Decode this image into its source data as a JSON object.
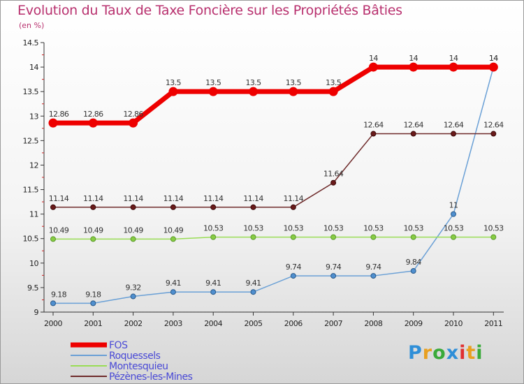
{
  "title": "Evolution du Taux de Taxe Foncière sur les Propriétés Bâties",
  "subtitle": "(en %)",
  "colors": {
    "title": "#b8306e",
    "FOS": "#ee0000",
    "Roquessels": "#6aa0d6",
    "Montesquieu": "#99dd55",
    "Pezenes": "#6e2a2a",
    "legend_text": "#4a4ad6"
  },
  "logo": {
    "text": "Proxiti",
    "letters": [
      "P",
      "r",
      "o",
      "x",
      "i",
      "t",
      "i"
    ],
    "letter_colors": [
      "#2f8fd8",
      "#e8a020",
      "#3aaa3a",
      "#2f8fd8",
      "#e03030",
      "#e8a020",
      "#3aaa3a"
    ]
  },
  "chart_data": {
    "type": "line",
    "title": "Evolution du Taux de Taxe Foncière sur les Propriétés Bâties",
    "ylabel": "(en %)",
    "xlabel": "",
    "categories": [
      "2000",
      "2001",
      "2002",
      "2003",
      "2004",
      "2005",
      "2006",
      "2007",
      "2008",
      "2009",
      "2010",
      "2011"
    ],
    "ylim": [
      9,
      14.5
    ],
    "yticks": [
      "9",
      "9.5",
      "10",
      "10.5",
      "11",
      "11.5",
      "12",
      "12.5",
      "13",
      "13.5",
      "14",
      "14.5"
    ],
    "grid": false,
    "legend_position": "bottom-left",
    "series": [
      {
        "name": "FOS",
        "key": "FOS",
        "values": [
          12.86,
          12.86,
          12.86,
          13.5,
          13.5,
          13.5,
          13.5,
          13.5,
          14,
          14,
          14,
          14
        ],
        "labels": [
          "12.86",
          "12.86",
          "12.86",
          "13.5",
          "13.5",
          "13.5",
          "13.5",
          "13.5",
          "14",
          "14",
          "14",
          "14"
        ]
      },
      {
        "name": "Roquessels",
        "key": "Roquessels",
        "values": [
          9.18,
          9.18,
          9.32,
          9.41,
          9.41,
          9.41,
          9.74,
          9.74,
          9.74,
          9.84,
          11,
          14
        ],
        "labels": [
          "9.18",
          "9.18",
          "9.32",
          "9.41",
          "9.41",
          "9.41",
          "9.74",
          "9.74",
          "9.74",
          "9.84",
          "11",
          "14"
        ]
      },
      {
        "name": "Montesquieu",
        "key": "Montesquieu",
        "values": [
          10.49,
          10.49,
          10.49,
          10.49,
          10.53,
          10.53,
          10.53,
          10.53,
          10.53,
          10.53,
          10.53,
          10.53
        ],
        "labels": [
          "10.49",
          "10.49",
          "10.49",
          "10.49",
          "10.53",
          "10.53",
          "10.53",
          "10.53",
          "10.53",
          "10.53",
          "10.53",
          "10.53"
        ]
      },
      {
        "name": "Pézènes-les-Mines",
        "key": "Pezenes",
        "values": [
          11.14,
          11.14,
          11.14,
          11.14,
          11.14,
          11.14,
          11.14,
          11.64,
          12.64,
          12.64,
          12.64,
          12.64
        ],
        "labels": [
          "11.14",
          "11.14",
          "11.14",
          "11.14",
          "11.14",
          "11.14",
          "11.14",
          "11.64",
          "12.64",
          "12.64",
          "12.64",
          "12.64"
        ]
      }
    ]
  }
}
